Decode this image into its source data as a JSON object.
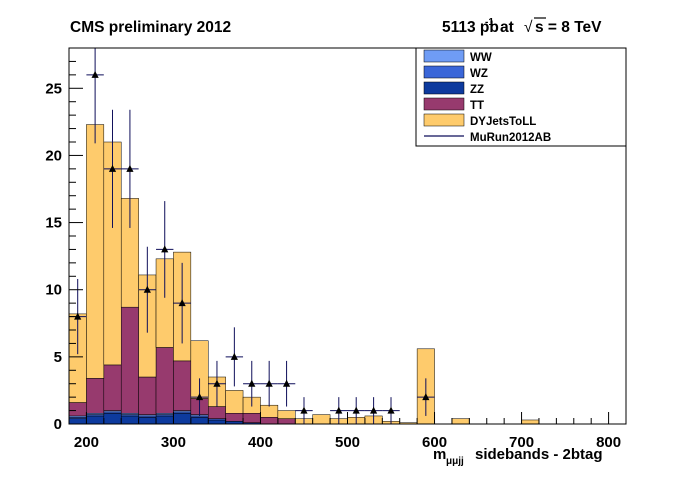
{
  "header": {
    "left": "CMS preliminary 2012",
    "lumi": "5113 pb",
    "lumi_exp": "-1",
    "at": "at",
    "sqrt_sym": "√",
    "energy": "s = 8 TeV"
  },
  "axis": {
    "xlabel_m": "m",
    "xlabel_sub": "μμjj",
    "xlabel_rest": "sidebands - 2btag"
  },
  "legend": [
    {
      "label": "WW",
      "kind": "box",
      "color": "#6f9cf5"
    },
    {
      "label": "WZ",
      "kind": "box",
      "color": "#3a66d8"
    },
    {
      "label": "ZZ",
      "kind": "box",
      "color": "#0d3a9e"
    },
    {
      "label": "TT",
      "kind": "box",
      "color": "#973a6e"
    },
    {
      "label": "DYJetsToLL",
      "kind": "box",
      "color": "#fecb6c"
    },
    {
      "label": "MuRun2012AB",
      "kind": "line",
      "color": "#0e0e5a"
    }
  ],
  "chart_data": {
    "type": "histogram",
    "x_range": [
      180,
      820
    ],
    "y_range": [
      0,
      28
    ],
    "bin_width": 20,
    "xticks": [
      200,
      300,
      400,
      500,
      600,
      700,
      800
    ],
    "yticks": [
      0,
      5,
      10,
      15,
      20,
      25
    ],
    "bin_edges_start": [
      180,
      200,
      220,
      240,
      260,
      280,
      300,
      320,
      340,
      360,
      380,
      400,
      420,
      440,
      460,
      480,
      500,
      520,
      540,
      560,
      580,
      600,
      620,
      640,
      660,
      680,
      700,
      720,
      740,
      760,
      780,
      800
    ],
    "stack": [
      {
        "name": "ZZ",
        "color": "#0d3a9e",
        "values": [
          0.4,
          0.6,
          0.8,
          0.6,
          0.5,
          0.6,
          0.8,
          0.5,
          0.3,
          0.2,
          0.1,
          0.0,
          0.0,
          0,
          0,
          0,
          0,
          0,
          0,
          0,
          0,
          0,
          0,
          0,
          0,
          0,
          0,
          0,
          0,
          0,
          0,
          0
        ]
      },
      {
        "name": "WZ",
        "color": "#3a66d8",
        "values": [
          0.1,
          0.1,
          0.1,
          0.1,
          0.1,
          0.1,
          0.1,
          0.1,
          0.1,
          0.0,
          0.0,
          0.0,
          0,
          0,
          0,
          0,
          0,
          0,
          0,
          0,
          0,
          0,
          0,
          0,
          0,
          0,
          0,
          0,
          0,
          0,
          0,
          0
        ]
      },
      {
        "name": "WW",
        "color": "#6f9cf5",
        "values": [
          0.1,
          0.1,
          0.1,
          0.1,
          0.1,
          0.1,
          0.1,
          0.1,
          0.0,
          0.0,
          0.0,
          0.0,
          0,
          0,
          0,
          0,
          0,
          0,
          0,
          0,
          0,
          0,
          0,
          0,
          0,
          0,
          0,
          0,
          0,
          0,
          0,
          0
        ]
      },
      {
        "name": "TT",
        "color": "#973a6e",
        "values": [
          1.0,
          2.6,
          3.4,
          7.9,
          2.8,
          4.9,
          3.7,
          1.2,
          0.9,
          0.6,
          0.7,
          0.5,
          0.4,
          0,
          0,
          0,
          0,
          0,
          0,
          0,
          0,
          0,
          0,
          0,
          0,
          0,
          0,
          0,
          0,
          0,
          0,
          0
        ]
      },
      {
        "name": "DYJetsToLL",
        "color": "#fecb6c",
        "values": [
          6.6,
          18.9,
          16.6,
          8.1,
          7.6,
          6.6,
          8.1,
          4.3,
          2.2,
          1.7,
          1.2,
          0.9,
          0.6,
          0.4,
          0.7,
          0.4,
          0.5,
          0.6,
          0.2,
          0.1,
          5.6,
          0.0,
          0.4,
          0.0,
          0.0,
          0.0,
          0.3,
          0.0,
          0.0,
          0.0,
          0.0,
          0.0
        ]
      }
    ],
    "data_points": [
      {
        "x": 190,
        "y": 8,
        "err": 2.8
      },
      {
        "x": 210,
        "y": 26,
        "err": 5.1
      },
      {
        "x": 230,
        "y": 19,
        "err": 4.4
      },
      {
        "x": 250,
        "y": 19,
        "err": 4.4
      },
      {
        "x": 270,
        "y": 10,
        "err": 3.2
      },
      {
        "x": 290,
        "y": 13,
        "err": 3.6
      },
      {
        "x": 310,
        "y": 9,
        "err": 3.0
      },
      {
        "x": 330,
        "y": 2,
        "err": 1.4
      },
      {
        "x": 350,
        "y": 3,
        "err": 1.7
      },
      {
        "x": 370,
        "y": 5,
        "err": 2.2
      },
      {
        "x": 390,
        "y": 3,
        "err": 1.7
      },
      {
        "x": 410,
        "y": 3,
        "err": 1.7
      },
      {
        "x": 430,
        "y": 3,
        "err": 1.7
      },
      {
        "x": 450,
        "y": 1,
        "err": 1.0
      },
      {
        "x": 490,
        "y": 1,
        "err": 1.0
      },
      {
        "x": 510,
        "y": 1,
        "err": 1.0
      },
      {
        "x": 530,
        "y": 1,
        "err": 1.0
      },
      {
        "x": 550,
        "y": 1,
        "err": 1.0
      },
      {
        "x": 590,
        "y": 2,
        "err": 1.4
      }
    ]
  }
}
